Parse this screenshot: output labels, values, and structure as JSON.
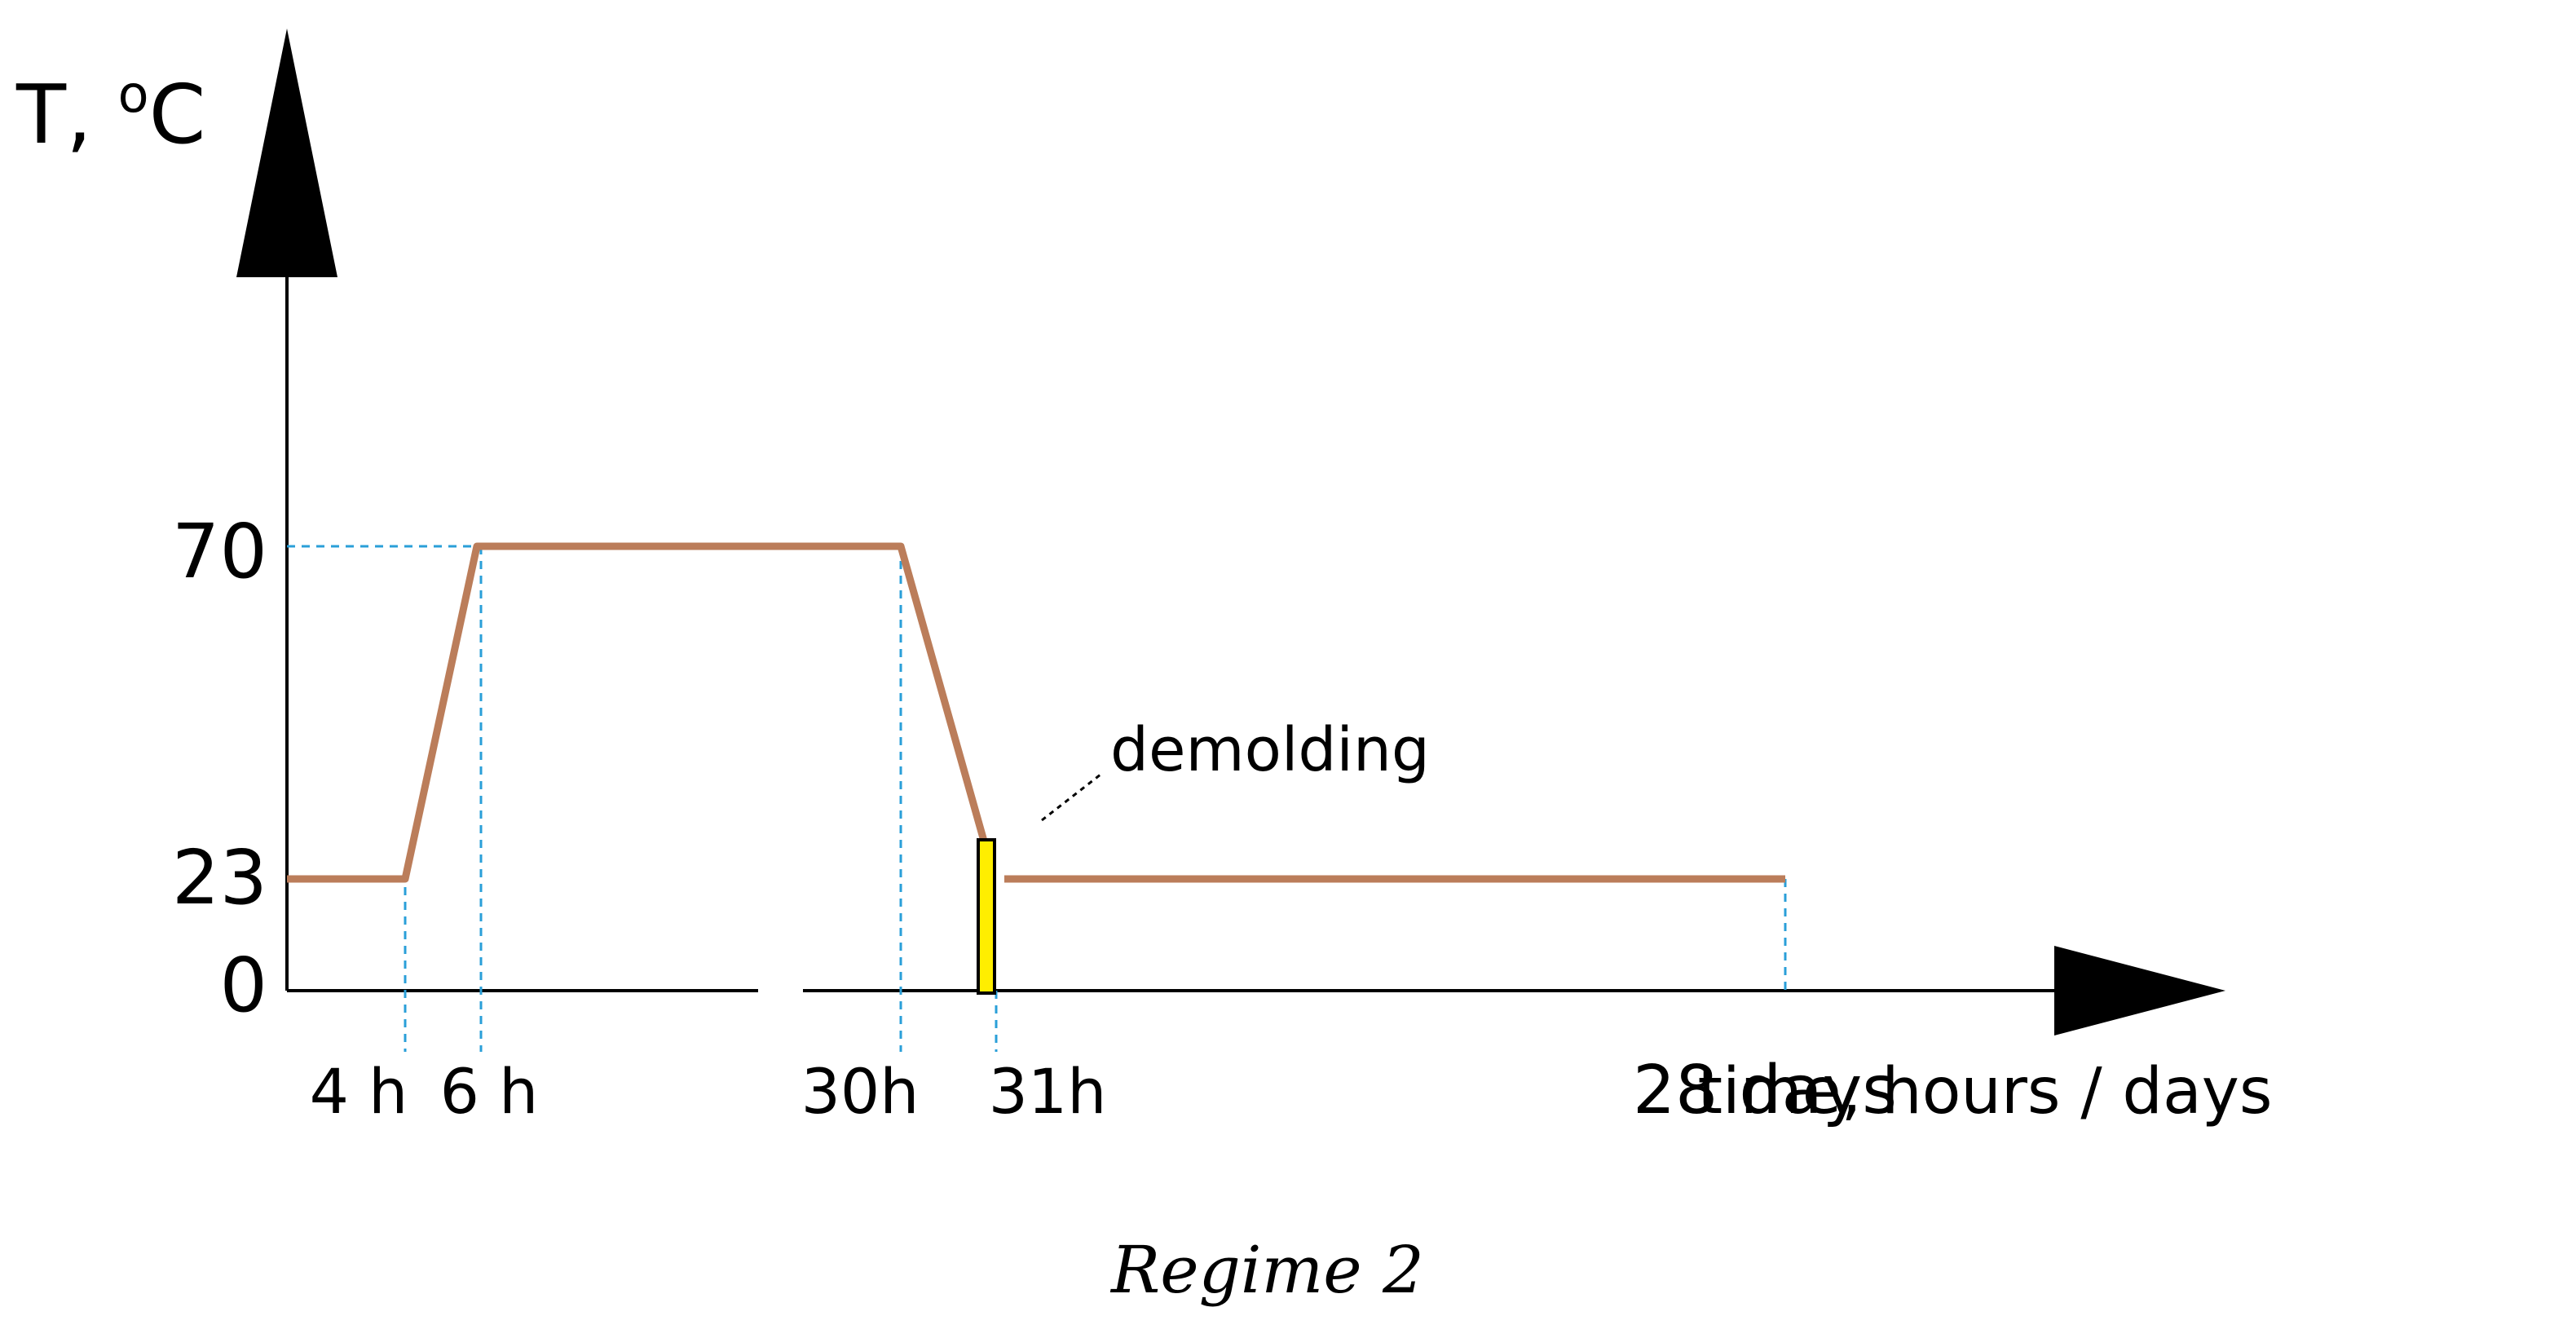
{
  "y_axis": {
    "label": "T, ",
    "degree_sup": "o",
    "unit": "C",
    "ticks": [
      {
        "value": 70,
        "label": "70"
      },
      {
        "value": 23,
        "label": "23"
      },
      {
        "value": 0,
        "label": "0"
      }
    ]
  },
  "x_axis": {
    "label": "time, hours / days",
    "ticks": [
      "4 h",
      "6 h",
      "30h",
      "31h",
      "28 days"
    ]
  },
  "profile": [
    {
      "time": "0 h",
      "T": 23
    },
    {
      "time": "4 h",
      "T": 23
    },
    {
      "time": "6 h",
      "T": 70
    },
    {
      "time": "30 h",
      "T": 70
    },
    {
      "time": "31 h",
      "T": 23
    },
    {
      "time": "28 days",
      "T": 23
    }
  ],
  "annotation": {
    "label": "demolding"
  },
  "caption": "Regime 2",
  "colors": {
    "profile_line": "#bb7d5a",
    "guide_line": "#2a9fd8",
    "demolding_bar": "#ffee00",
    "axis": "#000000"
  }
}
